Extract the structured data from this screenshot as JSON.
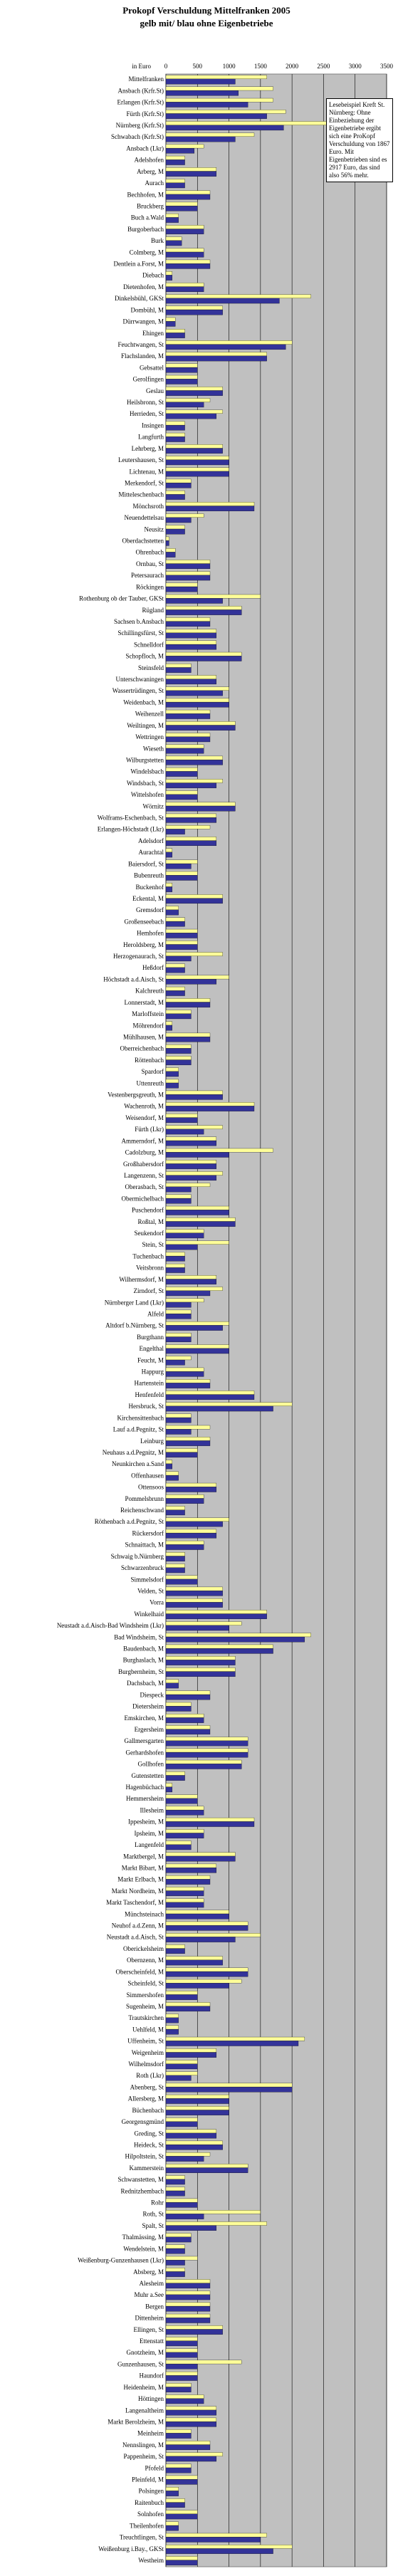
{
  "chart_data": {
    "type": "hbar",
    "title": "Prokopf Verschuldung Mittelfranken 2005",
    "subtitle": "gelb mit/ blau ohne Eigenbetriebe",
    "xlabel": "in Euro",
    "annotation": "Lesebeispiel Kreft St. Nürnberg: Ohne Einbeziehung der Eigenbetriebe ergibt sich eine ProKopf Verschuldung von 1867 Euro. Mit Eigenbetrieben sind es 2917 Euro, das sind also 56% mehr.",
    "xlim": [
      0,
      3500
    ],
    "xticks": [
      0,
      500,
      1000,
      1500,
      2000,
      2500,
      3000,
      3500
    ],
    "grid": true,
    "categories": [
      "Mittelfranken",
      "Ansbach (Krfr.St)",
      "Erlangen (Krfr.St)",
      "Fürth (Krfr.St)",
      "Nürnberg (Krfr.St)",
      "Schwabach (Krfr.St)",
      "Ansbach (Lkr)",
      "Adelshofen",
      "Arberg, M",
      "Aurach",
      "Bechhofen, M",
      "Bruckberg",
      "Buch a.Wald",
      "Burgoberbach",
      "Burk",
      "Colmberg, M",
      "Dentlein a.Forst, M",
      "Diebach",
      "Dietenhofen, M",
      "Dinkelsbühl, GKSt",
      "Dombühl, M",
      "Dürrwangen, M",
      "Ehingen",
      "Feuchtwangen, St",
      "Flachslanden, M",
      "Gebsattel",
      "Gerolfingen",
      "Geslau",
      "Heilsbronn, St",
      "Herrieden, St",
      "Insingen",
      "Langfurth",
      "Lehrberg, M",
      "Leutershausen, St",
      "Lichtenau, M",
      "Merkendorf, St",
      "Mitteleschenbach",
      "Mönchsroth",
      "Neuendettelsau",
      "Neusitz",
      "Oberdachstetten",
      "Ohrenbach",
      "Ornbau, St",
      "Petersaurach",
      "Röckingen",
      "Rothenburg ob der Tauber, GKSt",
      "Rügland",
      "Sachsen b.Ansbach",
      "Schillingsfürst, St",
      "Schnelldorf",
      "Schopfloch, M",
      "Steinsfeld",
      "Unterschwaningen",
      "Wassertrüdingen, St",
      "Weidenbach, M",
      "Weihenzell",
      "Weiltingen, M",
      "Wettringen",
      "Wieseth",
      "Wilburgstetten",
      "Windelsbach",
      "Windsbach, St",
      "Wittelshofen",
      "Wörnitz",
      "Wolframs-Eschenbach, St",
      "Erlangen-Höchstadt (Lkr)",
      "Adelsdorf",
      "Aurachtal",
      "Baiersdorf, St",
      "Bubenreuth",
      "Buckenhof",
      "Eckental, M",
      "Gremsdorf",
      "Großenseebach",
      "Hemhofen",
      "Heroldsberg, M",
      "Herzogenaurach, St",
      "Heßdorf",
      "Höchstadt a.d.Aisch, St",
      "Kalchreuth",
      "Lonnerstadt, M",
      "Marloffstein",
      "Möhrendorf",
      "Mühlhausen, M",
      "Oberreichenbach",
      "Röttenbach",
      "Spardorf",
      "Uttenreuth",
      "Vestenbergsgreuth, M",
      "Wachenroth, M",
      "Weisendorf, M",
      "Fürth (Lkr)",
      "Ammerndorf, M",
      "Cadolzburg, M",
      "Großhabersdorf",
      "Langenzenn, St",
      "Oberasbach, St",
      "Obermichelbach",
      "Puschendorf",
      "Roßtal, M",
      "Seukendorf",
      "Stein, St",
      "Tuchenbach",
      "Veitsbronn",
      "Wilhermsdorf, M",
      "Zirndorf, St",
      "Nürnberger Land (Lkr)",
      "Alfeld",
      "Altdorf b.Nürnberg, St",
      "Burgthann",
      "Engelthal",
      "Feucht, M",
      "Happurg",
      "Hartenstein",
      "Henfenfeld",
      "Hersbruck, St",
      "Kirchensittenbach",
      "Lauf a.d.Pegnitz, St",
      "Leinburg",
      "Neuhaus a.d.Pegnitz, M",
      "Neunkirchen a.Sand",
      "Offenhausen",
      "Ottensoos",
      "Pommelsbrunn",
      "Reichenschwand",
      "Röthenbach a.d.Pegnitz, St",
      "Rückersdorf",
      "Schnaittach, M",
      "Schwaig b.Nürnberg",
      "Schwarzenbruck",
      "Simmelsdorf",
      "Velden, St",
      "Vorra",
      "Winkelhaid",
      "Neustadt a.d.Aisch-Bad Windsheim (Lkr)",
      "Bad Windsheim, St",
      "Baudenbach, M",
      "Burghaslach, M",
      "Burgbernheim, St",
      "Dachsbach, M",
      "Diespeck",
      "Dietersheim",
      "Emskirchen, M",
      "Ergersheim",
      "Gallmersgarten",
      "Gerhardshofen",
      "Gollhofen",
      "Gutenstetten",
      "Hagenbüchach",
      "Hemmersheim",
      "Illesheim",
      "Ippesheim, M",
      "Ipsheim, M",
      "Langenfeld",
      "Marktbergel, M",
      "Markt Bibart, M",
      "Markt Erlbach, M",
      "Markt Nordheim, M",
      "Markt Taschendorf, M",
      "Münchsteinach",
      "Neuhof a.d.Zenn, M",
      "Neustadt a.d.Aisch, St",
      "Oberickelsheim",
      "Obernzenn, M",
      "Oberscheinfeld, M",
      "Scheinfeld, St",
      "Simmershofen",
      "Sugenheim, M",
      "Trautskirchen",
      "Uehlfeld, M",
      "Uffenheim, St",
      "Weigenheim",
      "Wilhelmsdorf",
      "Roth (Lkr)",
      "Abenberg, St",
      "Allersberg, M",
      "Büchenbach",
      "Georgensgmünd",
      "Greding, St",
      "Heideck, St",
      "Hilpoltstein, St",
      "Kammerstein",
      "Schwanstetten, M",
      "Rednitzhembach",
      "Rohr",
      "Roth, St",
      "Spalt, St",
      "Thalmässing, M",
      "Wendelstein, M",
      "Weißenburg-Gunzenhausen (Lkr)",
      "Absberg, M",
      "Alesheim",
      "Muhr a.See",
      "Bergen",
      "Dittenheim",
      "Ellingen, St",
      "Ettenstatt",
      "Gnotzheim, M",
      "Gunzenhausen, St",
      "Haundorf",
      "Heidenheim, M",
      "Höttingen",
      "Langenaltheim",
      "Markt Berolzheim, M",
      "Meinheim",
      "Nennslingen, M",
      "Pappenheim, St",
      "Pfofeld",
      "Pleinfeld, M",
      "Polsingen",
      "Raitenbuch",
      "Solnhofen",
      "Theilenhofen",
      "Treuchtlingen, St",
      "Weißenburg i.Bay., GKSt",
      "Westheim"
    ],
    "series": [
      {
        "color": "#333399",
        "values": [
          1100,
          1150,
          1300,
          1600,
          1867,
          1100,
          450,
          300,
          800,
          300,
          700,
          500,
          200,
          600,
          250,
          600,
          700,
          100,
          600,
          1800,
          900,
          150,
          300,
          1900,
          1600,
          500,
          500,
          900,
          600,
          800,
          300,
          300,
          900,
          1000,
          1000,
          400,
          300,
          1400,
          400,
          300,
          50,
          150,
          700,
          700,
          500,
          900,
          1200,
          700,
          800,
          800,
          1200,
          400,
          800,
          900,
          1000,
          700,
          1100,
          700,
          600,
          900,
          500,
          800,
          500,
          1100,
          800,
          300,
          800,
          100,
          400,
          500,
          100,
          900,
          200,
          300,
          500,
          500,
          400,
          300,
          800,
          300,
          700,
          400,
          100,
          700,
          400,
          400,
          200,
          200,
          900,
          1400,
          500,
          600,
          800,
          1000,
          800,
          800,
          400,
          400,
          1000,
          1100,
          600,
          500,
          300,
          300,
          800,
          700,
          400,
          400,
          900,
          400,
          1000,
          300,
          600,
          700,
          1400,
          1700,
          400,
          400,
          700,
          500,
          100,
          200,
          800,
          600,
          300,
          900,
          800,
          600,
          300,
          300,
          500,
          900,
          900,
          1600,
          1000,
          2200,
          1700,
          1100,
          1100,
          200,
          700,
          400,
          600,
          700,
          1300,
          1300,
          1200,
          300,
          100,
          500,
          600,
          1400,
          600,
          400,
          1100,
          800,
          700,
          600,
          600,
          1000,
          1300,
          1100,
          300,
          900,
          1300,
          1000,
          500,
          700,
          200,
          200,
          2100,
          800,
          500,
          400,
          2000,
          1000,
          1000,
          500,
          800,
          900,
          600,
          1300,
          300,
          300,
          500,
          600,
          800,
          400,
          300,
          300,
          300,
          700,
          700,
          700,
          700,
          900,
          500,
          500,
          500,
          500,
          400,
          600,
          800,
          800,
          400,
          700,
          800,
          400,
          500,
          200,
          300,
          500,
          200,
          1500,
          1700,
          500
        ]
      },
      {
        "color": "#ffff99",
        "values": [
          1600,
          1700,
          1700,
          1900,
          2917,
          1400,
          600,
          300,
          800,
          300,
          700,
          500,
          200,
          600,
          250,
          600,
          700,
          100,
          600,
          2300,
          900,
          150,
          300,
          2000,
          1600,
          500,
          500,
          900,
          700,
          900,
          300,
          300,
          900,
          1000,
          1000,
          400,
          300,
          1400,
          600,
          300,
          50,
          150,
          700,
          700,
          500,
          1500,
          1200,
          700,
          800,
          800,
          1200,
          400,
          800,
          1000,
          1000,
          700,
          1100,
          700,
          600,
          900,
          500,
          900,
          500,
          1100,
          800,
          700,
          800,
          100,
          500,
          500,
          100,
          900,
          200,
          300,
          500,
          500,
          900,
          300,
          1000,
          300,
          700,
          400,
          100,
          700,
          400,
          400,
          200,
          200,
          900,
          1400,
          500,
          900,
          800,
          1700,
          800,
          900,
          700,
          400,
          1000,
          1100,
          600,
          1000,
          300,
          300,
          800,
          900,
          600,
          400,
          1000,
          400,
          1000,
          400,
          600,
          700,
          1400,
          2000,
          400,
          700,
          700,
          500,
          100,
          200,
          800,
          600,
          300,
          1000,
          800,
          600,
          300,
          300,
          500,
          900,
          900,
          1600,
          1200,
          2300,
          1700,
          1100,
          1100,
          200,
          700,
          400,
          600,
          700,
          1300,
          1300,
          1200,
          300,
          100,
          500,
          600,
          1400,
          600,
          400,
          1100,
          800,
          700,
          600,
          600,
          1000,
          1300,
          1500,
          300,
          900,
          1300,
          1200,
          500,
          700,
          200,
          200,
          2200,
          800,
          500,
          500,
          2000,
          1000,
          1000,
          500,
          800,
          900,
          700,
          1300,
          300,
          300,
          500,
          1500,
          1600,
          400,
          300,
          500,
          300,
          700,
          700,
          700,
          700,
          900,
          500,
          500,
          1200,
          500,
          400,
          600,
          800,
          800,
          400,
          700,
          900,
          400,
          500,
          200,
          300,
          500,
          200,
          1600,
          2000,
          500
        ]
      }
    ]
  }
}
